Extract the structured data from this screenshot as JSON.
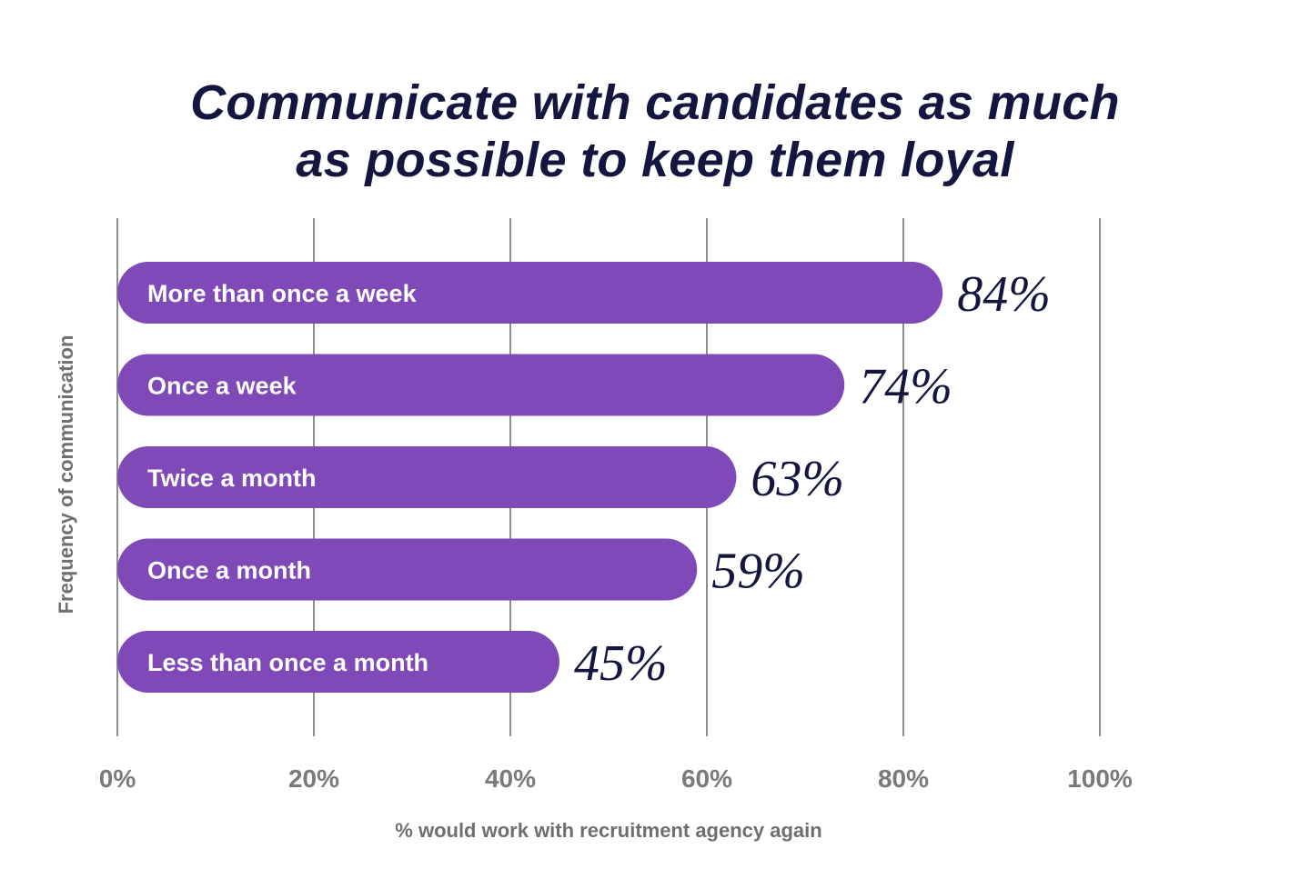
{
  "chart_data": {
    "type": "bar",
    "orientation": "horizontal",
    "title": "Communicate with candidates as much as possible to keep them loyal",
    "title_lines": [
      "Communicate with candidates as much",
      "as possible to keep them loyal"
    ],
    "xlabel": "% would work with recruitment agency again",
    "ylabel": "Frequency of communication",
    "xlim": [
      0,
      100
    ],
    "ticks": [
      0,
      20,
      40,
      60,
      80,
      100
    ],
    "tick_labels": [
      "0%",
      "20%",
      "40%",
      "60%",
      "80%",
      "100%"
    ],
    "grid": "vertical",
    "categories": [
      "More than once a week",
      "Once a week",
      "Twice a month",
      "Once a month",
      "Less than once a month"
    ],
    "values": [
      84,
      74,
      63,
      59,
      45
    ],
    "value_labels": [
      "84%",
      "74%",
      "63%",
      "59%",
      "45%"
    ],
    "colors": {
      "bar": "#7f4ab7",
      "text_dark": "#14163f",
      "grid": "#8c8c8c",
      "axis_text": "#7a7a7a"
    }
  }
}
